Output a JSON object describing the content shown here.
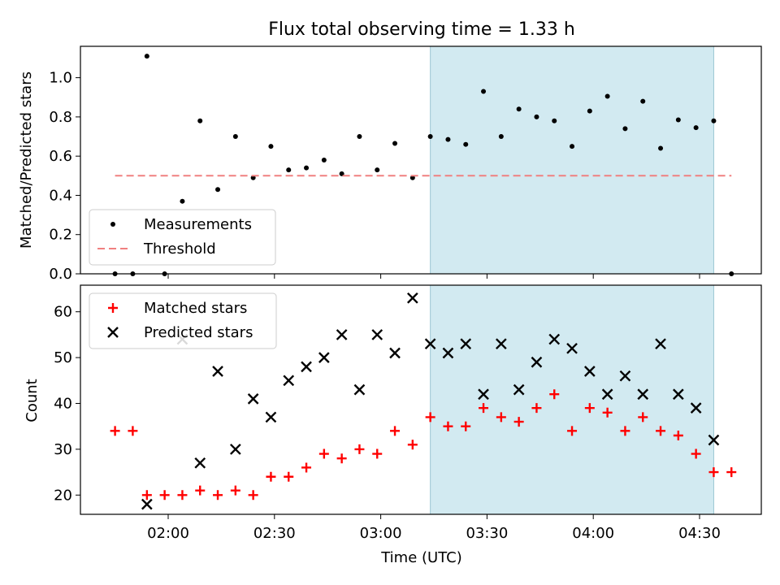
{
  "chart_data": {
    "title": "Flux total observing time = 1.33 h",
    "xlabel": "Time (UTC)",
    "x_ticks": [
      "02:00",
      "02:30",
      "03:00",
      "03:30",
      "04:00",
      "04:30"
    ],
    "shaded_region": {
      "start": "03:14",
      "end": "04:34",
      "color": "#add8e6"
    },
    "subplots": [
      {
        "id": "ratio",
        "type": "scatter",
        "ylabel": "Matched/Predicted stars",
        "ylim": [
          0,
          1.16
        ],
        "y_ticks": [
          "0.0",
          "0.2",
          "0.4",
          "0.6",
          "0.8",
          "1.0"
        ],
        "legend_position": "lower-left",
        "series": [
          {
            "name": "Measurements",
            "marker": "dot",
            "color": "#000000",
            "points": [
              [
                "01:45",
                0.0
              ],
              [
                "01:50",
                0.0
              ],
              [
                "01:54",
                1.11
              ],
              [
                "01:59",
                0.0
              ],
              [
                "02:04",
                0.37
              ],
              [
                "02:09",
                0.78
              ],
              [
                "02:14",
                0.43
              ],
              [
                "02:19",
                0.7
              ],
              [
                "02:24",
                0.49
              ],
              [
                "02:29",
                0.65
              ],
              [
                "02:34",
                0.53
              ],
              [
                "02:39",
                0.54
              ],
              [
                "02:44",
                0.58
              ],
              [
                "02:49",
                0.51
              ],
              [
                "02:54",
                0.7
              ],
              [
                "02:59",
                0.53
              ],
              [
                "03:04",
                0.665
              ],
              [
                "03:09",
                0.49
              ],
              [
                "03:14",
                0.7
              ],
              [
                "03:19",
                0.685
              ],
              [
                "03:24",
                0.66
              ],
              [
                "03:29",
                0.93
              ],
              [
                "03:34",
                0.7
              ],
              [
                "03:39",
                0.84
              ],
              [
                "03:44",
                0.8
              ],
              [
                "03:49",
                0.78
              ],
              [
                "03:54",
                0.65
              ],
              [
                "03:59",
                0.83
              ],
              [
                "04:04",
                0.905
              ],
              [
                "04:09",
                0.74
              ],
              [
                "04:14",
                0.88
              ],
              [
                "04:19",
                0.64
              ],
              [
                "04:24",
                0.785
              ],
              [
                "04:29",
                0.745
              ],
              [
                "04:34",
                0.78
              ],
              [
                "04:39",
                0.0
              ]
            ]
          },
          {
            "name": "Threshold",
            "marker": "dashed-line",
            "color": "#f08080",
            "line": [
              [
                "01:45",
                0.5
              ],
              [
                "04:39",
                0.5
              ]
            ]
          }
        ]
      },
      {
        "id": "counts",
        "type": "scatter",
        "ylabel": "Count",
        "ylim": [
          15.8,
          65.8
        ],
        "y_ticks": [
          "20",
          "30",
          "40",
          "50",
          "60"
        ],
        "legend_position": "upper-left",
        "series": [
          {
            "name": "Matched stars",
            "marker": "plus",
            "color": "#ff0000",
            "points": [
              [
                "01:45",
                34
              ],
              [
                "01:50",
                34
              ],
              [
                "01:54",
                20
              ],
              [
                "01:59",
                20
              ],
              [
                "02:04",
                20
              ],
              [
                "02:09",
                21
              ],
              [
                "02:14",
                20
              ],
              [
                "02:19",
                21
              ],
              [
                "02:24",
                20
              ],
              [
                "02:29",
                24
              ],
              [
                "02:34",
                24
              ],
              [
                "02:39",
                26
              ],
              [
                "02:44",
                29
              ],
              [
                "02:49",
                28
              ],
              [
                "02:54",
                30
              ],
              [
                "02:59",
                29
              ],
              [
                "03:04",
                34
              ],
              [
                "03:09",
                31
              ],
              [
                "03:14",
                37
              ],
              [
                "03:19",
                35
              ],
              [
                "03:24",
                35
              ],
              [
                "03:29",
                39
              ],
              [
                "03:34",
                37
              ],
              [
                "03:39",
                36
              ],
              [
                "03:44",
                39
              ],
              [
                "03:49",
                42
              ],
              [
                "03:54",
                34
              ],
              [
                "03:59",
                39
              ],
              [
                "04:04",
                38
              ],
              [
                "04:09",
                34
              ],
              [
                "04:14",
                37
              ],
              [
                "04:19",
                34
              ],
              [
                "04:24",
                33
              ],
              [
                "04:29",
                29
              ],
              [
                "04:34",
                25
              ],
              [
                "04:39",
                25
              ]
            ]
          },
          {
            "name": "Predicted stars",
            "marker": "x",
            "color": "#000000",
            "points": [
              [
                "01:54",
                18
              ],
              [
                "02:04",
                54
              ],
              [
                "02:09",
                27
              ],
              [
                "02:14",
                47
              ],
              [
                "02:19",
                30
              ],
              [
                "02:24",
                41
              ],
              [
                "02:29",
                37
              ],
              [
                "02:34",
                45
              ],
              [
                "02:39",
                48
              ],
              [
                "02:44",
                50
              ],
              [
                "02:49",
                55
              ],
              [
                "02:54",
                43
              ],
              [
                "02:59",
                55
              ],
              [
                "03:04",
                51
              ],
              [
                "03:09",
                63
              ],
              [
                "03:14",
                53
              ],
              [
                "03:19",
                51
              ],
              [
                "03:24",
                53
              ],
              [
                "03:29",
                42
              ],
              [
                "03:34",
                53
              ],
              [
                "03:39",
                43
              ],
              [
                "03:44",
                49
              ],
              [
                "03:49",
                54
              ],
              [
                "03:54",
                52
              ],
              [
                "03:59",
                47
              ],
              [
                "04:04",
                42
              ],
              [
                "04:09",
                46
              ],
              [
                "04:14",
                42
              ],
              [
                "04:19",
                53
              ],
              [
                "04:24",
                42
              ],
              [
                "04:29",
                39
              ],
              [
                "04:34",
                32
              ]
            ]
          }
        ]
      }
    ]
  }
}
